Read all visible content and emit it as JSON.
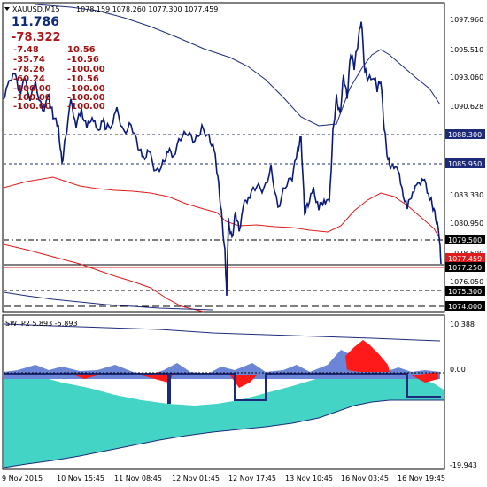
{
  "header": {
    "symbol_timeframe": "XAUUSD,M15",
    "ohlc": "1078.159 1078.260 1077.300 1077.459"
  },
  "overlay": {
    "big_value_1": "11.786",
    "big_value_2": "-78.322",
    "rows": [
      {
        "left": "-7.48",
        "right": "10.56"
      },
      {
        "left": "-35.74",
        "right": "-10.56"
      },
      {
        "left": "-78.26",
        "right": "-100.00"
      },
      {
        "left": "-60.24",
        "right": "-10.56"
      },
      {
        "left": "-100.00",
        "right": "-100.00"
      },
      {
        "left": "-100.00",
        "right": "-100.00"
      },
      {
        "left": "-100.00",
        "right": "-100.00"
      }
    ]
  },
  "price_axis": {
    "ticks": [
      "1097.960",
      "1095.510",
      "1093.060",
      "1090.628",
      "1083.330",
      "1080.950",
      "1078.500",
      "1076.050"
    ],
    "boxed_labels": [
      {
        "text": "1088.300",
        "style": "dark"
      },
      {
        "text": "1085.950",
        "style": "dark"
      },
      {
        "text": "1079.500",
        "style": "dark"
      },
      {
        "text": "1077.250",
        "style": "dark"
      },
      {
        "text": "1075.300",
        "style": "dark"
      },
      {
        "text": "1074.000",
        "style": "dark"
      }
    ],
    "current_price": "1077.459"
  },
  "indicator": {
    "title": "SWTP2 5.893 -5.893",
    "ticks": [
      "10.388",
      "0.00",
      "-19.943"
    ]
  },
  "time_axis": {
    "labels": [
      "9 Nov 2015",
      "10 Nov 15:45",
      "11 Nov 08:45",
      "12 Nov 01:45",
      "12 Nov 17:45",
      "13 Nov 10:45",
      "16 Nov 03:45",
      "16 Nov 19:45"
    ]
  },
  "colors": {
    "price_line": "#0a1a7a",
    "ma_red": "#e01b1b",
    "ma_dark": "#1d2a7a",
    "cyan_fill": "#44d4c6",
    "red_fill": "#ff1a1a",
    "blue_fill": "#6b86d6",
    "grid": "#000000"
  }
}
